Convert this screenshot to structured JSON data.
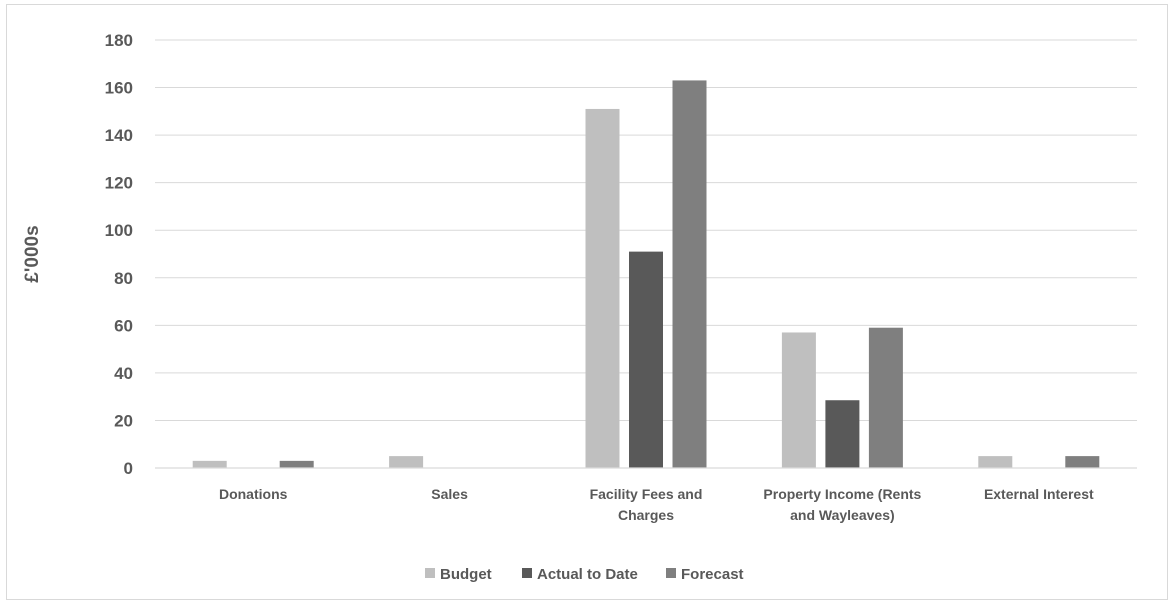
{
  "chart_data": {
    "type": "bar",
    "title": "",
    "xlabel": "",
    "ylabel": "£'000s",
    "ylim": [
      0,
      180
    ],
    "yticks": [
      "0",
      "20",
      "40",
      "60",
      "80",
      "100",
      "120",
      "140",
      "160",
      "180"
    ],
    "grid": true,
    "legend_position": "bottom",
    "categories": [
      [
        "Donations"
      ],
      [
        "Sales"
      ],
      [
        "Facility Fees and",
        "Charges"
      ],
      [
        "Property Income (Rents",
        "and Wayleaves)"
      ],
      [
        "External Interest"
      ]
    ],
    "series": [
      {
        "name": "Budget",
        "color": "#bfbfbf",
        "values": [
          3,
          5,
          151,
          57,
          5
        ]
      },
      {
        "name": "Actual to Date",
        "color": "#595959",
        "values": [
          0,
          0,
          91,
          28.5,
          0
        ]
      },
      {
        "name": "Forecast",
        "color": "#7f7f7f",
        "values": [
          3,
          0,
          163,
          59,
          5
        ]
      }
    ]
  }
}
